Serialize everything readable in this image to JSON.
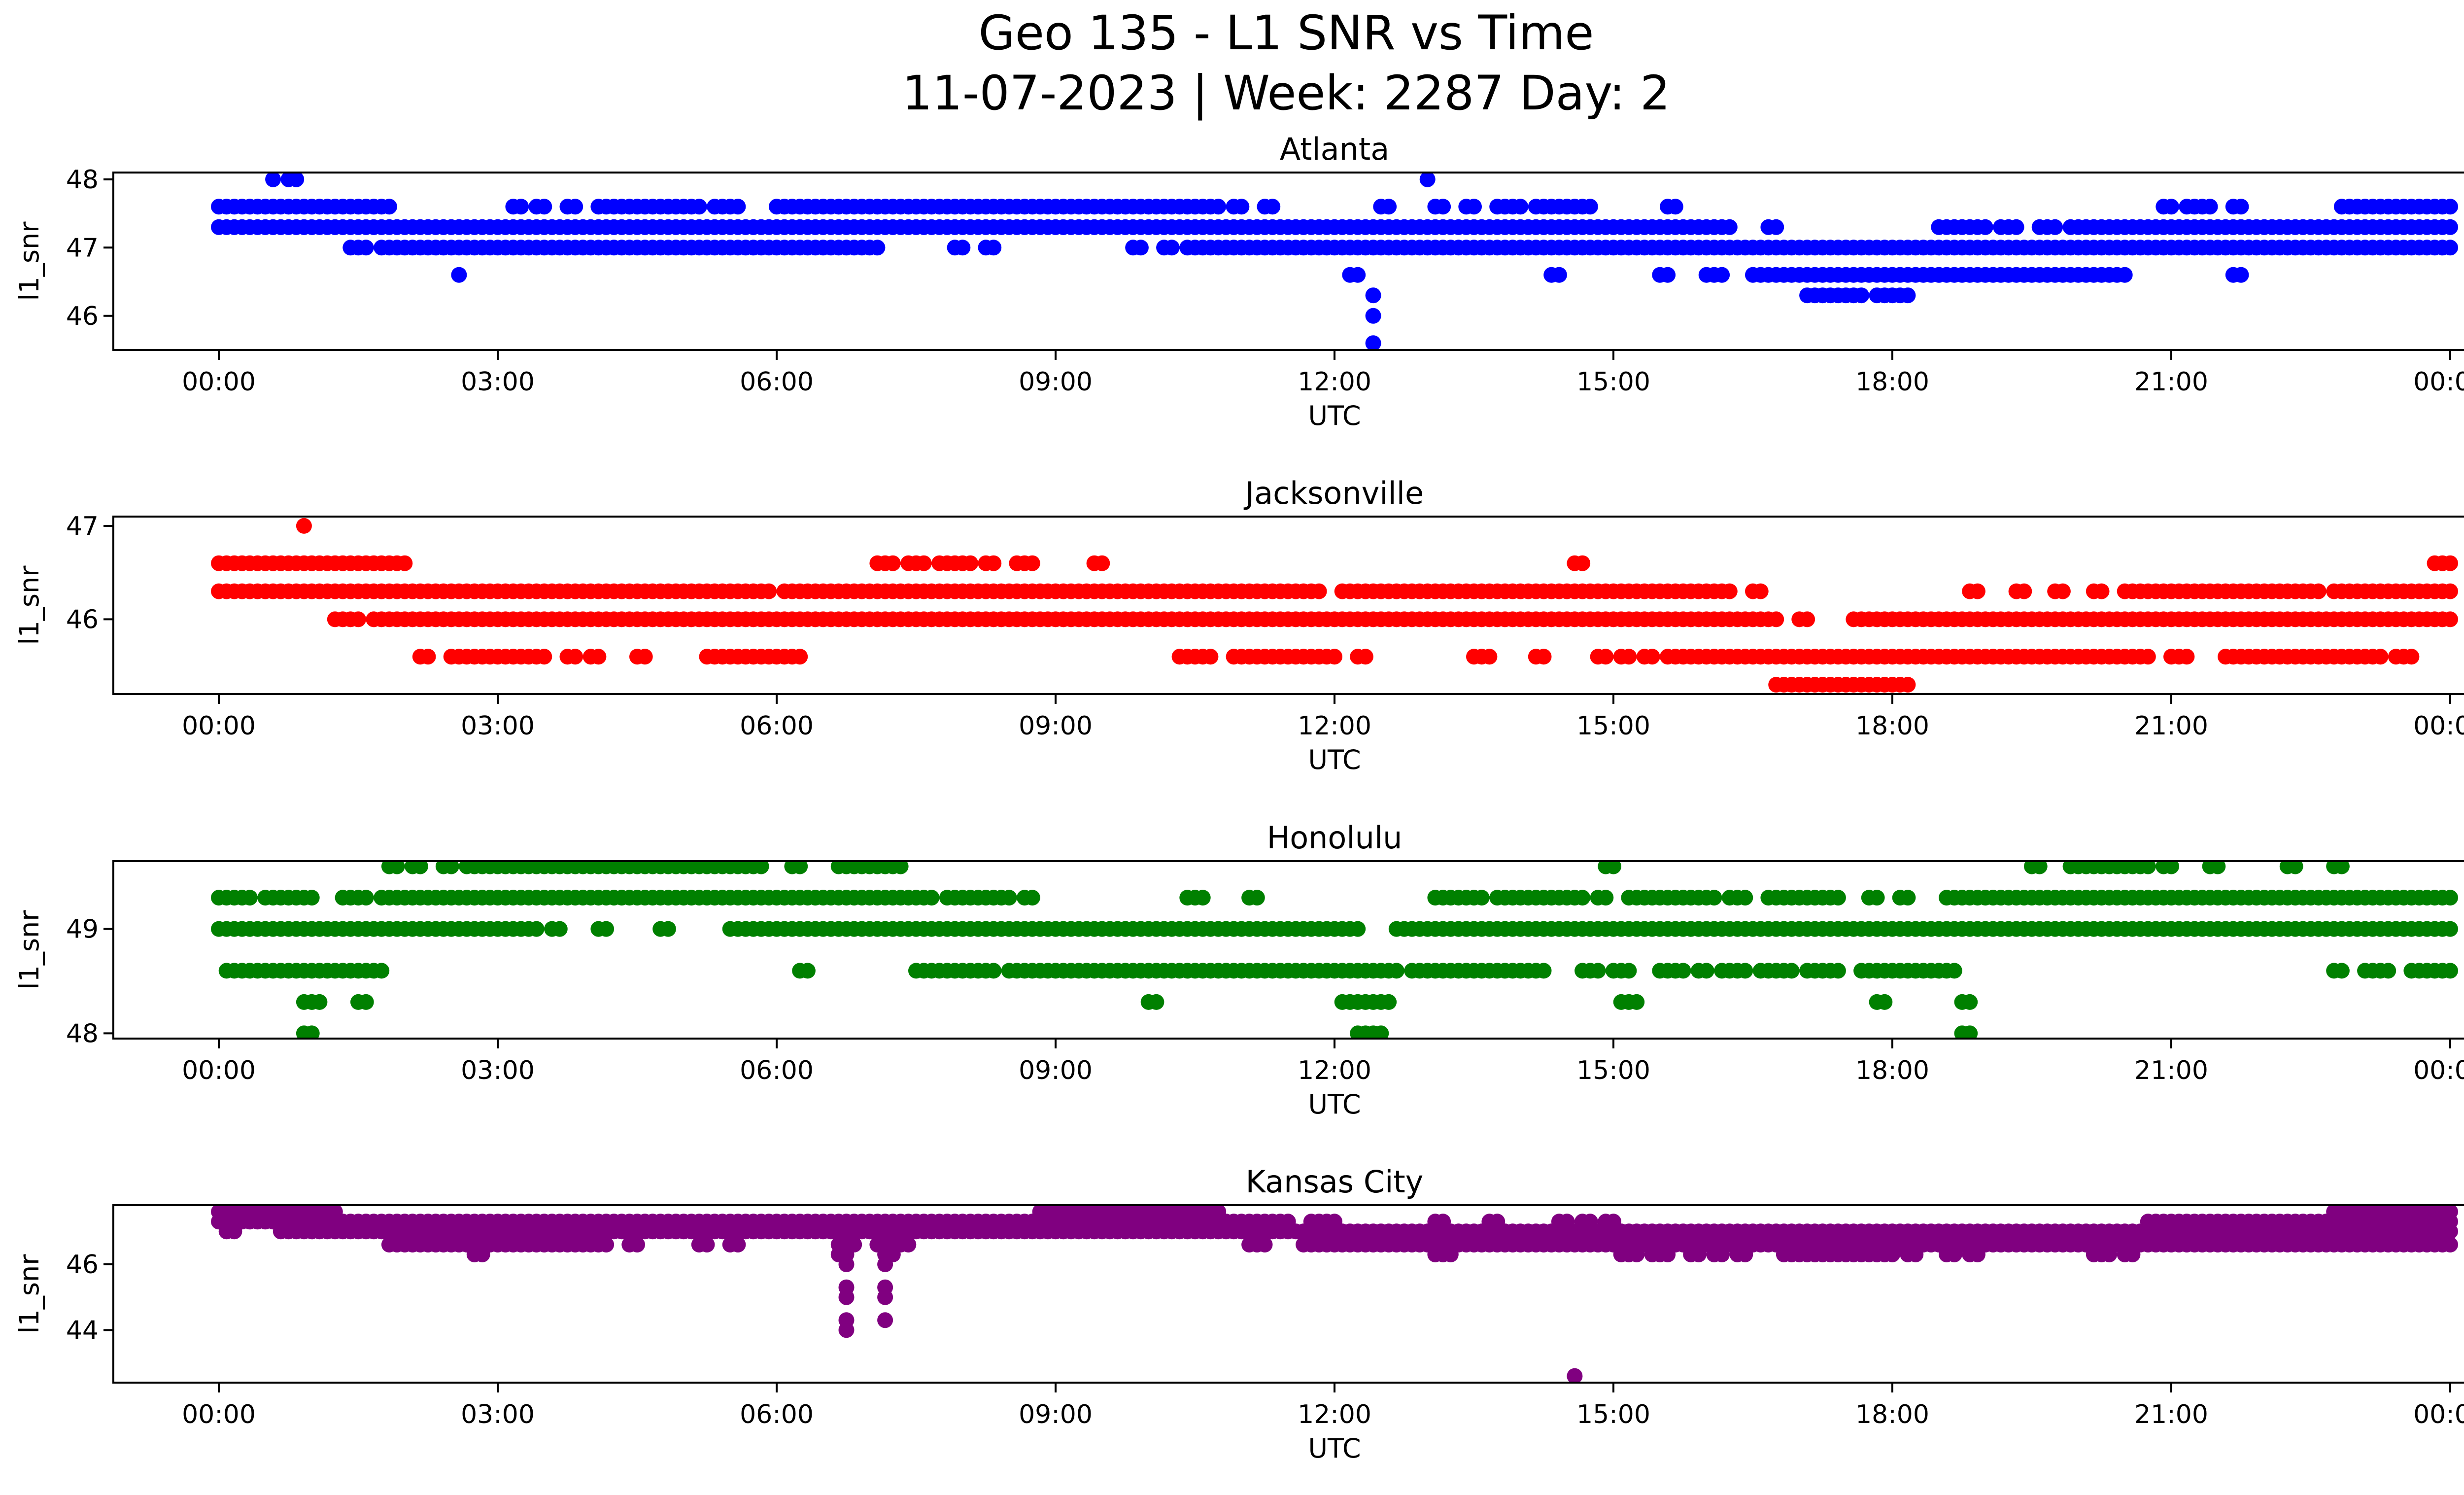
{
  "figure": {
    "title_line1": "Geo 135 - L1 SNR vs Time",
    "title_line2": "11-07-2023 | Week: 2287 Day: 2"
  },
  "chart_data": [
    {
      "type": "scatter",
      "title": "Atlanta",
      "xlabel": "UTC",
      "ylabel": "l1_snr",
      "color": "#0000ff",
      "xlim": [
        "2023-11-07 00:00",
        "2023-11-08 00:00"
      ],
      "xticks": [
        "00:00",
        "03:00",
        "06:00",
        "09:00",
        "12:00",
        "15:00",
        "18:00",
        "21:00",
        "00:00"
      ],
      "ylim": [
        45.5,
        48.1
      ],
      "yticks": [
        46,
        47,
        48
      ],
      "grid": false,
      "band_segments": [
        {
          "y": 47.6,
          "x": [
            [
              "00:00",
              "01:50"
            ],
            [
              "03:10",
              "03:15"
            ],
            [
              "03:25",
              "03:30"
            ],
            [
              "03:45",
              "03:50"
            ],
            [
              "04:05",
              "05:10"
            ],
            [
              "05:20",
              "05:35"
            ],
            [
              "06:00",
              "10:45"
            ],
            [
              "10:55",
              "11:00"
            ],
            [
              "11:15",
              "11:20"
            ],
            [
              "12:30",
              "12:35"
            ],
            [
              "13:05",
              "13:10"
            ],
            [
              "13:25",
              "13:30"
            ],
            [
              "13:45",
              "14:00"
            ],
            [
              "14:10",
              "14:45"
            ],
            [
              "15:35",
              "15:40"
            ],
            [
              "20:55",
              "21:00"
            ],
            [
              "21:10",
              "21:25"
            ],
            [
              "21:40",
              "21:45"
            ],
            [
              "22:50",
              "24:00"
            ]
          ]
        },
        {
          "y": 47.3,
          "x": [
            [
              "00:00",
              "16:15"
            ],
            [
              "16:40",
              "16:45"
            ],
            [
              "18:30",
              "18:50"
            ],
            [
              "18:55",
              "19:00"
            ],
            [
              "19:10",
              "19:20"
            ],
            [
              "19:35",
              "19:45"
            ],
            [
              "19:55",
              "24:00"
            ]
          ]
        },
        {
          "y": 47.0,
          "x": [
            [
              "01:25",
              "01:35"
            ],
            [
              "01:45",
              "04:50"
            ],
            [
              "04:55",
              "06:55"
            ],
            [
              "07:00",
              "07:05"
            ],
            [
              "07:55",
              "08:00"
            ],
            [
              "08:15",
              "08:20"
            ],
            [
              "09:50",
              "09:55"
            ],
            [
              "10:10",
              "10:15"
            ],
            [
              "10:25",
              "24:00"
            ]
          ]
        },
        {
          "y": 46.6,
          "x": [
            [
              "12:10",
              "12:15"
            ],
            [
              "14:20",
              "14:25"
            ],
            [
              "15:30",
              "15:35"
            ],
            [
              "16:00",
              "16:10"
            ],
            [
              "16:30",
              "20:30"
            ],
            [
              "21:40",
              "21:45"
            ]
          ]
        },
        {
          "y": 46.3,
          "x": [
            [
              "17:05",
              "17:40"
            ],
            [
              "17:50",
              "18:00"
            ],
            [
              "18:05",
              "18:10"
            ]
          ]
        }
      ],
      "extra_points": [
        {
          "x": "00:35",
          "y": 48.0
        },
        {
          "x": "00:45",
          "y": 48.0
        },
        {
          "x": "00:50",
          "y": 48.0
        },
        {
          "x": "02:35",
          "y": 46.6
        },
        {
          "x": "13:00",
          "y": 48.0
        },
        {
          "x": "12:25",
          "y": 46.3
        },
        {
          "x": "12:25",
          "y": 46.0
        },
        {
          "x": "12:25",
          "y": 45.6
        }
      ]
    },
    {
      "type": "scatter",
      "title": "Jacksonville",
      "xlabel": "UTC",
      "ylabel": "l1_snr",
      "color": "#ff0000",
      "xlim": [
        "2023-11-07 00:00",
        "2023-11-08 00:00"
      ],
      "xticks": [
        "00:00",
        "03:00",
        "06:00",
        "09:00",
        "12:00",
        "15:00",
        "18:00",
        "21:00",
        "00:00"
      ],
      "ylim": [
        45.2,
        47.1
      ],
      "yticks": [
        46,
        47
      ],
      "grid": false,
      "band_segments": [
        {
          "y": 46.6,
          "x": [
            [
              "00:00",
              "01:50"
            ],
            [
              "01:55",
              "02:00"
            ],
            [
              "07:05",
              "07:15"
            ],
            [
              "07:25",
              "07:35"
            ],
            [
              "07:45",
              "08:05"
            ],
            [
              "08:15",
              "08:20"
            ],
            [
              "08:35",
              "08:45"
            ],
            [
              "09:25",
              "09:30"
            ],
            [
              "14:35",
              "14:40"
            ],
            [
              "23:50",
              "24:00"
            ]
          ]
        },
        {
          "y": 46.3,
          "x": [
            [
              "00:00",
              "05:55"
            ],
            [
              "06:05",
              "11:50"
            ],
            [
              "12:05",
              "16:15"
            ],
            [
              "16:30",
              "16:35"
            ],
            [
              "18:50",
              "18:55"
            ],
            [
              "19:20",
              "19:25"
            ],
            [
              "19:45",
              "19:50"
            ],
            [
              "20:10",
              "20:15"
            ],
            [
              "20:30",
              "22:35"
            ],
            [
              "22:45",
              "24:00"
            ]
          ]
        },
        {
          "y": 46.0,
          "x": [
            [
              "01:15",
              "01:30"
            ],
            [
              "01:40",
              "16:45"
            ],
            [
              "17:00",
              "17:05"
            ],
            [
              "17:35",
              "24:00"
            ]
          ]
        },
        {
          "y": 45.6,
          "x": [
            [
              "02:10",
              "02:15"
            ],
            [
              "02:30",
              "03:30"
            ],
            [
              "03:45",
              "03:50"
            ],
            [
              "04:00",
              "04:05"
            ],
            [
              "04:30",
              "04:35"
            ],
            [
              "05:15",
              "06:00"
            ],
            [
              "06:05",
              "06:15"
            ],
            [
              "10:20",
              "10:40"
            ],
            [
              "10:55",
              "12:00"
            ],
            [
              "12:15",
              "12:20"
            ],
            [
              "13:30",
              "13:40"
            ],
            [
              "14:10",
              "14:15"
            ],
            [
              "14:50",
              "14:55"
            ],
            [
              "15:05",
              "15:10"
            ],
            [
              "15:20",
              "15:25"
            ],
            [
              "15:35",
              "20:45"
            ],
            [
              "21:00",
              "21:10"
            ],
            [
              "21:35",
              "23:15"
            ],
            [
              "23:25",
              "23:35"
            ]
          ]
        },
        {
          "y": 45.3,
          "x": [
            [
              "16:45",
              "18:10"
            ]
          ]
        }
      ],
      "extra_points": [
        {
          "x": "00:55",
          "y": 47.0
        }
      ]
    },
    {
      "type": "scatter",
      "title": "Honolulu",
      "xlabel": "UTC",
      "ylabel": "l1_snr",
      "color": "#008000",
      "xlim": [
        "2023-11-07 00:00",
        "2023-11-08 00:00"
      ],
      "xticks": [
        "00:00",
        "03:00",
        "06:00",
        "09:00",
        "12:00",
        "15:00",
        "18:00",
        "21:00",
        "00:00"
      ],
      "ylim": [
        47.95,
        49.65
      ],
      "yticks": [
        48,
        49
      ],
      "grid": false,
      "band_segments": [
        {
          "y": 49.6,
          "x": [
            [
              "01:50",
              "01:55"
            ],
            [
              "02:05",
              "02:10"
            ],
            [
              "02:25",
              "02:30"
            ],
            [
              "02:40",
              "05:50"
            ],
            [
              "06:10",
              "06:15"
            ],
            [
              "06:40",
              "07:05"
            ],
            [
              "07:10",
              "07:20"
            ],
            [
              "14:55",
              "15:00"
            ],
            [
              "19:30",
              "19:35"
            ],
            [
              "19:55",
              "20:45"
            ],
            [
              "20:55",
              "21:00"
            ],
            [
              "21:25",
              "21:30"
            ],
            [
              "22:15",
              "22:20"
            ],
            [
              "22:45",
              "22:50"
            ]
          ]
        },
        {
          "y": 49.3,
          "x": [
            [
              "00:00",
              "00:20"
            ],
            [
              "00:30",
              "01:00"
            ],
            [
              "01:20",
              "01:35"
            ],
            [
              "01:45",
              "07:40"
            ],
            [
              "07:50",
              "08:30"
            ],
            [
              "08:40",
              "08:45"
            ],
            [
              "10:25",
              "10:35"
            ],
            [
              "11:05",
              "11:10"
            ],
            [
              "13:05",
              "13:35"
            ],
            [
              "13:45",
              "14:40"
            ],
            [
              "14:50",
              "14:55"
            ],
            [
              "15:10",
              "16:05"
            ],
            [
              "16:15",
              "16:25"
            ],
            [
              "16:40",
              "17:25"
            ],
            [
              "17:45",
              "17:50"
            ],
            [
              "18:05",
              "18:10"
            ],
            [
              "18:35",
              "24:00"
            ]
          ]
        },
        {
          "y": 49.0,
          "x": [
            [
              "00:00",
              "02:55"
            ],
            [
              "03:00",
              "03:25"
            ],
            [
              "03:35",
              "03:40"
            ],
            [
              "04:05",
              "04:10"
            ],
            [
              "04:45",
              "04:50"
            ],
            [
              "05:30",
              "06:40"
            ],
            [
              "06:45",
              "06:50"
            ],
            [
              "06:55",
              "12:15"
            ],
            [
              "12:40",
              "24:00"
            ]
          ]
        },
        {
          "y": 48.6,
          "x": [
            [
              "00:05",
              "00:25"
            ],
            [
              "00:30",
              "01:45"
            ],
            [
              "06:15",
              "06:20"
            ],
            [
              "07:30",
              "08:20"
            ],
            [
              "08:30",
              "12:40"
            ],
            [
              "12:50",
              "13:45"
            ],
            [
              "13:50",
              "14:15"
            ],
            [
              "14:40",
              "14:50"
            ],
            [
              "15:00",
              "15:10"
            ],
            [
              "15:30",
              "15:45"
            ],
            [
              "15:55",
              "16:00"
            ],
            [
              "16:10",
              "16:25"
            ],
            [
              "16:35",
              "16:55"
            ],
            [
              "17:05",
              "17:25"
            ],
            [
              "17:40",
              "18:30"
            ],
            [
              "18:35",
              "18:40"
            ],
            [
              "22:45",
              "22:50"
            ],
            [
              "23:05",
              "23:10"
            ],
            [
              "23:15",
              "23:20"
            ],
            [
              "23:35",
              "24:00"
            ]
          ]
        },
        {
          "y": 48.3,
          "x": [
            [
              "00:55",
              "01:05"
            ],
            [
              "01:30",
              "01:35"
            ],
            [
              "10:00",
              "10:05"
            ],
            [
              "12:05",
              "12:10"
            ],
            [
              "12:15",
              "12:35"
            ],
            [
              "15:05",
              "15:15"
            ],
            [
              "17:50",
              "17:55"
            ],
            [
              "18:45",
              "18:50"
            ]
          ]
        },
        {
          "y": 48.0,
          "x": [
            [
              "00:55",
              "01:00"
            ],
            [
              "12:15",
              "12:30"
            ],
            [
              "18:45",
              "18:50"
            ]
          ]
        }
      ],
      "extra_points": []
    },
    {
      "type": "scatter",
      "title": "Kansas City",
      "xlabel": "UTC",
      "ylabel": "l1_snr",
      "color": "#800080",
      "xlim": [
        "2023-11-07 00:00",
        "2023-11-08 00:00"
      ],
      "xticks": [
        "00:00",
        "03:00",
        "06:00",
        "09:00",
        "12:00",
        "15:00",
        "18:00",
        "21:00",
        "00:00"
      ],
      "ylim": [
        42.4,
        47.8
      ],
      "yticks": [
        44,
        46
      ],
      "grid": false,
      "band_segments": [
        {
          "y": 47.6,
          "x": [
            [
              "00:00",
              "01:15"
            ],
            [
              "08:50",
              "10:45"
            ],
            [
              "22:45",
              "24:00"
            ]
          ]
        },
        {
          "y": 47.3,
          "x": [
            [
              "00:00",
              "11:30"
            ],
            [
              "11:45",
              "12:00"
            ],
            [
              "13:05",
              "13:10"
            ],
            [
              "13:40",
              "13:45"
            ],
            [
              "14:25",
              "14:30"
            ],
            [
              "14:40",
              "14:45"
            ],
            [
              "14:55",
              "15:00"
            ],
            [
              "20:45",
              "24:00"
            ]
          ]
        },
        {
          "y": 47.0,
          "x": [
            [
              "00:05",
              "00:10"
            ],
            [
              "00:40",
              "00:50"
            ],
            [
              "00:55",
              "24:00"
            ]
          ]
        },
        {
          "y": 46.6,
          "x": [
            [
              "01:50",
              "04:10"
            ],
            [
              "04:25",
              "04:30"
            ],
            [
              "05:10",
              "05:15"
            ],
            [
              "05:30",
              "05:35"
            ],
            [
              "06:40",
              "06:50"
            ],
            [
              "07:05",
              "07:25"
            ],
            [
              "11:05",
              "11:15"
            ],
            [
              "11:40",
              "24:00"
            ]
          ]
        },
        {
          "y": 46.3,
          "x": [
            [
              "02:45",
              "02:50"
            ],
            [
              "06:40",
              "06:45"
            ],
            [
              "07:10",
              "07:15"
            ],
            [
              "13:05",
              "13:15"
            ],
            [
              "15:05",
              "15:15"
            ],
            [
              "15:25",
              "15:35"
            ],
            [
              "15:50",
              "15:55"
            ],
            [
              "16:05",
              "16:10"
            ],
            [
              "16:20",
              "16:25"
            ],
            [
              "16:50",
              "18:00"
            ],
            [
              "18:10",
              "18:15"
            ],
            [
              "18:35",
              "18:40"
            ],
            [
              "18:50",
              "18:55"
            ],
            [
              "20:10",
              "20:20"
            ],
            [
              "20:30",
              "20:35"
            ]
          ]
        }
      ],
      "extra_points": [
        {
          "x": "06:45",
          "y": 46.0
        },
        {
          "x": "06:45",
          "y": 45.3
        },
        {
          "x": "06:45",
          "y": 45.0
        },
        {
          "x": "06:45",
          "y": 44.3
        },
        {
          "x": "06:45",
          "y": 44.0
        },
        {
          "x": "07:10",
          "y": 46.0
        },
        {
          "x": "07:10",
          "y": 45.3
        },
        {
          "x": "07:10",
          "y": 45.0
        },
        {
          "x": "07:10",
          "y": 44.3
        },
        {
          "x": "14:35",
          "y": 42.6
        }
      ]
    }
  ]
}
